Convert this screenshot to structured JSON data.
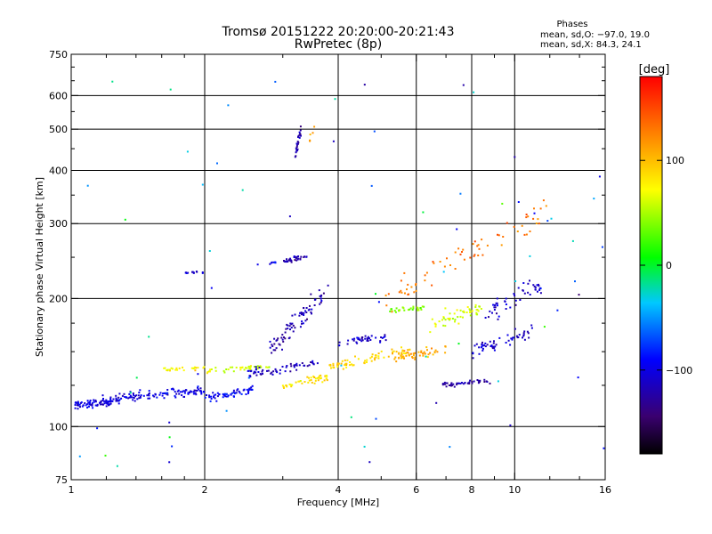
{
  "chart_data": {
    "type": "scatter",
    "title": "Tromsø 20151222 20:20:00-20:21:43",
    "subtitle": "RwPretec (8p)",
    "xlabel": "Frequency [MHz]",
    "ylabel": "Stationary phase Virtual Height [km]",
    "x_scale": "log",
    "y_scale": "log",
    "xlim": [
      1,
      16
    ],
    "ylim": [
      75,
      750
    ],
    "x_ticks": [
      1,
      2,
      4,
      6,
      8,
      10,
      16
    ],
    "x_tick_labels": [
      "1",
      "2",
      "4",
      "6",
      "8",
      "10",
      "16"
    ],
    "y_ticks": [
      75,
      100,
      200,
      300,
      400,
      500,
      600,
      750
    ],
    "y_tick_labels": [
      "75",
      "100",
      "200",
      "300",
      "400",
      "500",
      "600",
      "750"
    ],
    "grid": true,
    "stats": {
      "heading": "Phases",
      "line_o": "mean, sd,O: −97.0, 19.0",
      "line_x": "mean, sd,X:  84.3, 24.1"
    },
    "colorbar": {
      "unit": "[deg]",
      "range": [
        -180,
        180
      ],
      "ticks": [
        100,
        0,
        -100
      ],
      "tick_labels": [
        "100",
        "0",
        "−100"
      ],
      "colormap": "rainbow"
    },
    "traces": [
      {
        "x": [
          1.02,
          1.4
        ],
        "y": [
          112,
          118
        ],
        "jitter": 0.04,
        "phase": -105,
        "n": 110
      },
      {
        "x": [
          1.4,
          2.0
        ],
        "y": [
          118,
          121
        ],
        "jitter": 0.035,
        "phase": -100,
        "n": 80
      },
      {
        "x": [
          2.0,
          2.6
        ],
        "y": [
          116,
          123
        ],
        "jitter": 0.03,
        "phase": -95,
        "n": 60
      },
      {
        "x": [
          1.6,
          2.0
        ],
        "y": [
          136,
          137
        ],
        "jitter": 0.015,
        "phase": 75,
        "n": 25
      },
      {
        "x": [
          2.0,
          2.8
        ],
        "y": [
          135,
          139
        ],
        "jitter": 0.02,
        "phase": 60,
        "n": 40
      },
      {
        "x": [
          2.5,
          3.6
        ],
        "y": [
          133,
          141
        ],
        "jitter": 0.04,
        "phase": -115,
        "n": 60
      },
      {
        "x": [
          3.0,
          3.8
        ],
        "y": [
          124,
          131
        ],
        "jitter": 0.03,
        "phase": 85,
        "n": 45
      },
      {
        "x": [
          3.8,
          5.8
        ],
        "y": [
          138,
          150
        ],
        "jitter": 0.04,
        "phase": 90,
        "n": 70
      },
      {
        "x": [
          4.0,
          5.2
        ],
        "y": [
          157,
          163
        ],
        "jitter": 0.03,
        "phase": -115,
        "n": 40
      },
      {
        "x": [
          5.3,
          7.0
        ],
        "y": [
          145,
          152
        ],
        "jitter": 0.04,
        "phase": 110,
        "n": 50
      },
      {
        "x": [
          6.8,
          8.8
        ],
        "y": [
          125,
          128
        ],
        "jitter": 0.02,
        "phase": -125,
        "n": 45
      },
      {
        "x": [
          8.0,
          11.0
        ],
        "y": [
          150,
          168
        ],
        "jitter": 0.05,
        "phase": -110,
        "n": 55
      },
      {
        "x": [
          5.2,
          6.4
        ],
        "y": [
          187,
          190
        ],
        "jitter": 0.02,
        "phase": 40,
        "n": 30
      },
      {
        "x": [
          6.4,
          8.5
        ],
        "y": [
          175,
          190
        ],
        "jitter": 0.06,
        "phase": 60,
        "n": 50
      },
      {
        "x": [
          8.5,
          11.5
        ],
        "y": [
          185,
          215
        ],
        "jitter": 0.07,
        "phase": -110,
        "n": 50
      },
      {
        "x": [
          2.8,
          3.8
        ],
        "y": [
          150,
          215
        ],
        "jitter": 0.08,
        "phase": -120,
        "n": 80
      },
      {
        "x": [
          3.0,
          3.4
        ],
        "y": [
          244,
          252
        ],
        "jitter": 0.02,
        "phase": -120,
        "n": 35
      },
      {
        "x": [
          2.6,
          2.9
        ],
        "y": [
          240,
          243
        ],
        "jitter": 0.01,
        "phase": -95,
        "n": 8
      },
      {
        "x": [
          1.8,
          2.0
        ],
        "y": [
          230,
          230
        ],
        "jitter": 0.01,
        "phase": -110,
        "n": 12
      },
      {
        "x": [
          3.2,
          3.3
        ],
        "y": [
          440,
          500
        ],
        "jitter": 0.05,
        "phase": -125,
        "n": 25
      },
      {
        "x": [
          3.45,
          3.55
        ],
        "y": [
          470,
          520
        ],
        "jitter": 0.05,
        "phase": 110,
        "n": 6
      },
      {
        "x": [
          5.0,
          12.0
        ],
        "y": [
          195,
          330
        ],
        "jitter": 0.1,
        "phase": 130,
        "n": 70
      },
      {
        "x": [
          1.0,
          16.0
        ],
        "y": [
          80,
          650
        ],
        "jitter": 0.6,
        "phase": -60,
        "n": 70
      }
    ]
  }
}
